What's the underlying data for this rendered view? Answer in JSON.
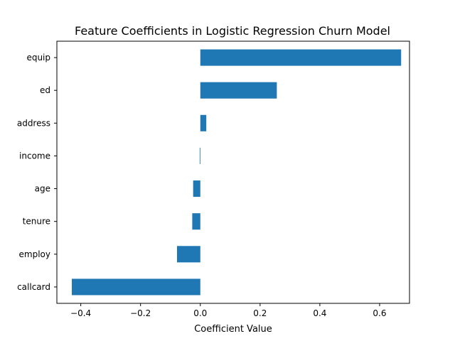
{
  "chart_data": {
    "type": "bar",
    "orientation": "horizontal",
    "title": "Feature Coefficients in Logistic Regression Churn Model",
    "xlabel": "Coefficient Value",
    "ylabel": "",
    "categories": [
      "callcard",
      "employ",
      "tenure",
      "age",
      "income",
      "address",
      "ed",
      "equip"
    ],
    "values": [
      -0.43,
      -0.078,
      -0.027,
      -0.024,
      -0.002,
      0.02,
      0.256,
      0.672
    ],
    "xlim": [
      -0.48,
      0.7
    ],
    "xticks": [
      -0.4,
      -0.2,
      0.0,
      0.2,
      0.4,
      0.6
    ],
    "xtick_labels": [
      "−0.4",
      "−0.2",
      "0.0",
      "0.2",
      "0.4",
      "0.6"
    ],
    "bar_color": "#1f77b4",
    "grid": false,
    "legend": "none"
  }
}
